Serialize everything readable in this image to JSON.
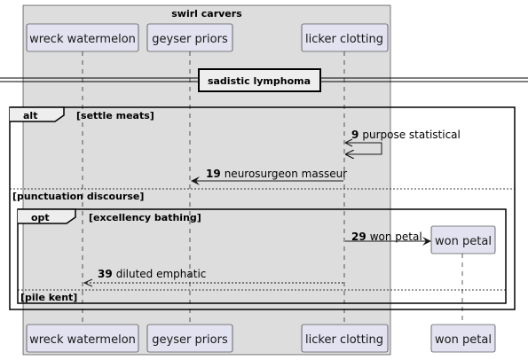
{
  "box": {
    "title": "swirl carvers"
  },
  "participants": {
    "p1": "wreck watermelon",
    "p2": "geyser priors",
    "p3": "licker clotting",
    "p4": "won petal"
  },
  "divider": {
    "label": "sadistic lymphoma"
  },
  "alt": {
    "keyword": "alt",
    "guard": "[settle meats]",
    "else_guard": "[punctuation discourse]"
  },
  "opt": {
    "keyword": "opt",
    "guard": "[excellency bathing]",
    "else_guard": "[pile kent]"
  },
  "messages": [
    {
      "num": "9",
      "text": "purpose statistical"
    },
    {
      "num": "19",
      "text": "neurosurgeon masseur"
    },
    {
      "num": "29",
      "text": "won petal"
    },
    {
      "num": "39",
      "text": "diluted emphatic"
    }
  ],
  "colors": {
    "box_fill": "#DDDDDD",
    "participant_fill": "#E2E2F0",
    "participant_border": "#181818"
  }
}
